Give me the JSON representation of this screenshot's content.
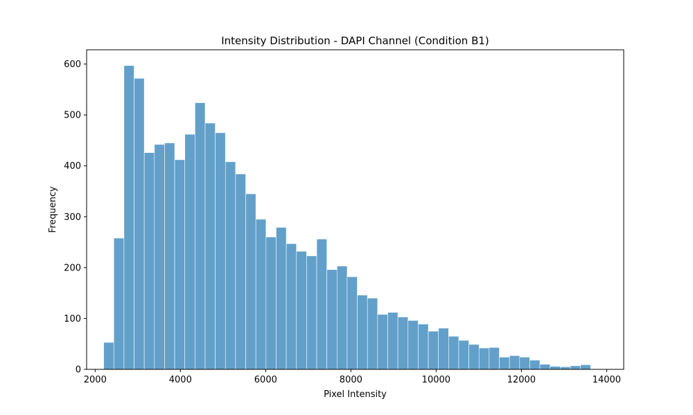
{
  "chart_data": {
    "type": "bar",
    "title": "Intensity Distribution - DAPI Channel (Condition B1)",
    "xlabel": "Pixel Intensity",
    "ylabel": "Frequency",
    "xlim": [
      1800,
      14400
    ],
    "ylim": [
      0,
      628
    ],
    "x_ticks": [
      2000,
      4000,
      6000,
      8000,
      10000,
      12000,
      14000
    ],
    "y_ticks": [
      0,
      100,
      200,
      300,
      400,
      500,
      600
    ],
    "bar_color": "#1f77b4",
    "bar_opacity": 0.7,
    "grid": false,
    "legend": "none",
    "bin_edges": [
      2200,
      2438,
      2676,
      2914,
      3152,
      3390,
      3628,
      3866,
      4104,
      4342,
      4580,
      4818,
      5056,
      5294,
      5532,
      5770,
      6008,
      6246,
      6484,
      6722,
      6960,
      7198,
      7436,
      7674,
      7912,
      8150,
      8388,
      8626,
      8864,
      9102,
      9340,
      9578,
      9816,
      10054,
      10292,
      10530,
      10768,
      11006,
      11244,
      11482,
      11720,
      11958,
      12196,
      12434,
      12672,
      12910,
      13148,
      13386,
      13624,
      13862
    ],
    "values": [
      53,
      258,
      597,
      572,
      426,
      442,
      445,
      412,
      462,
      524,
      484,
      465,
      408,
      384,
      345,
      295,
      260,
      279,
      247,
      232,
      223,
      256,
      196,
      203,
      182,
      146,
      140,
      108,
      112,
      103,
      96,
      89,
      75,
      81,
      65,
      57,
      49,
      42,
      43,
      24,
      27,
      24,
      18,
      10,
      6,
      5,
      7,
      9,
      1,
      1
    ]
  }
}
